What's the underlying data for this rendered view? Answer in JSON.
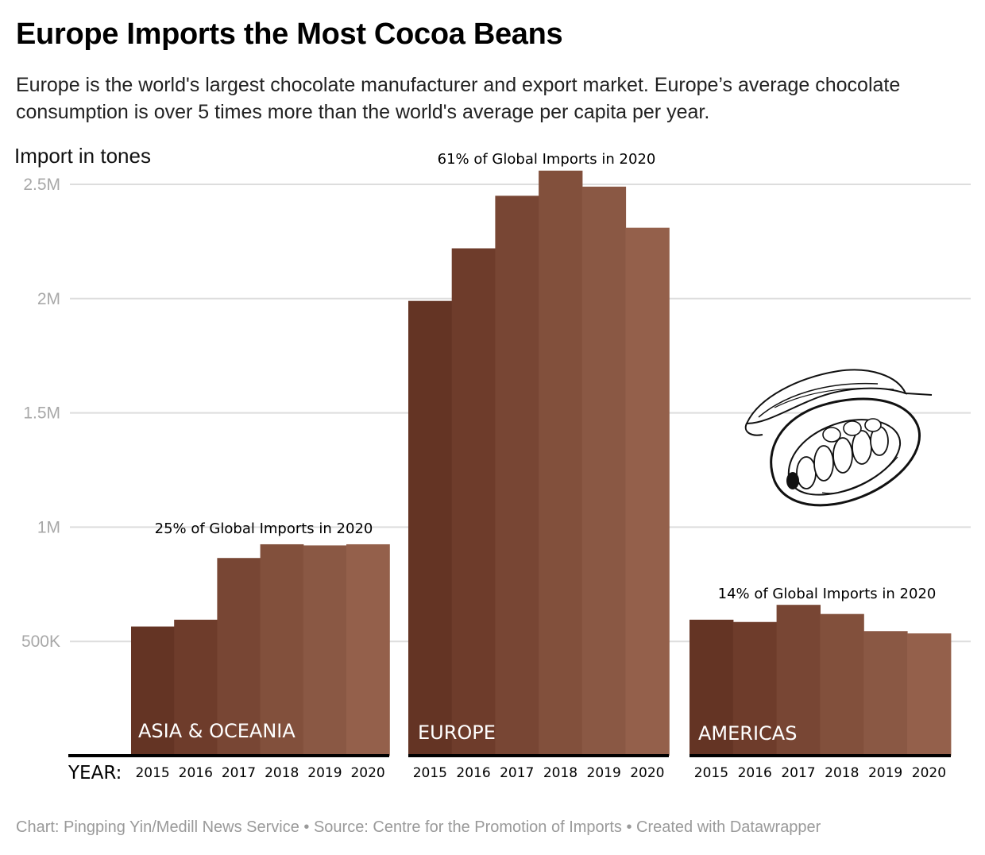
{
  "header": {
    "title": "Europe Imports the Most Cocoa Beans",
    "subtitle": "Europe is the world's largest chocolate manufacturer and export market. Europe’s average chocolate consumption is over 5 times more than the world's average per capita per year."
  },
  "footer": {
    "text": "Chart: Pingping Yin/Medill News Service • Source: Centre for the Promotion of Imports • Created with Datawrapper"
  },
  "colors": {
    "year_shades": [
      "#643424",
      "#6e3c2b",
      "#784634",
      "#82503c",
      "#8a5844",
      "#94604b"
    ],
    "grid": "#dddddd",
    "baseline": "#000000"
  },
  "icon": "cocoa-pod-icon",
  "chart_data": {
    "type": "bar",
    "ylabel": "Import in tones",
    "ylim": [
      0,
      2500000
    ],
    "yticks": [
      500000,
      1000000,
      1500000,
      2000000,
      2500000
    ],
    "ytick_labels": [
      "500K",
      "1M",
      "1.5M",
      "2M",
      "2.5M"
    ],
    "x_prefix": "YEAR:",
    "grid": true,
    "categories": [
      "2015",
      "2016",
      "2017",
      "2018",
      "2019",
      "2020"
    ],
    "groups": [
      {
        "name": "ASIA & OCEANIA",
        "values": [
          565000,
          595000,
          865000,
          925000,
          920000,
          925000
        ],
        "annotation": "25% of Global Imports in 2020"
      },
      {
        "name": "EUROPE",
        "values": [
          1990000,
          2220000,
          2450000,
          2560000,
          2490000,
          2310000
        ],
        "annotation": "61% of Global Imports in 2020"
      },
      {
        "name": "AMERICAS",
        "values": [
          595000,
          585000,
          660000,
          620000,
          545000,
          535000
        ],
        "annotation": "14% of Global Imports in 2020"
      }
    ]
  }
}
